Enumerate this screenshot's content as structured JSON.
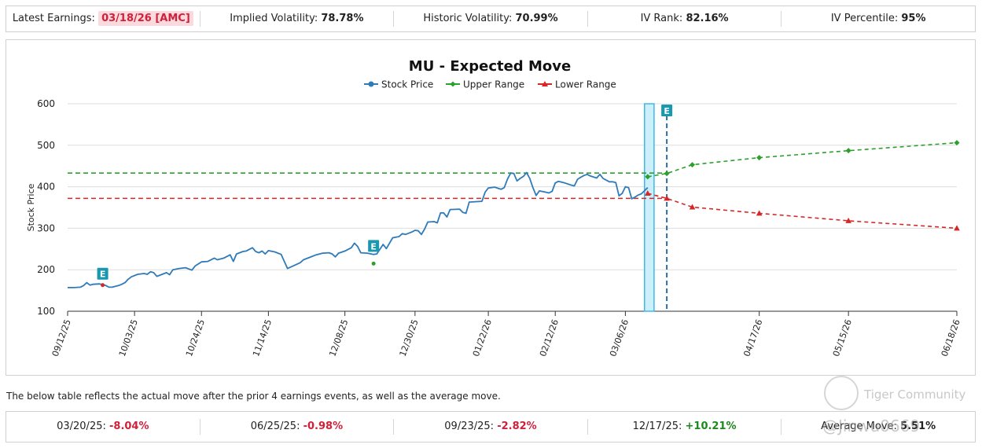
{
  "stats": {
    "latest_earnings_label": "Latest Earnings:",
    "latest_earnings_value": "03/18/26 [AMC]",
    "iv_label": "Implied Volatility:",
    "iv_value": "78.78%",
    "hv_label": "Historic Volatility:",
    "hv_value": "70.99%",
    "iv_rank_label": "IV Rank:",
    "iv_rank_value": "82.16%",
    "iv_pct_label": "IV Percentile:",
    "iv_pct_value": "95%"
  },
  "chart_data": {
    "type": "line",
    "title": "MU - Expected Move",
    "ylabel": "Stock Price",
    "xlabel": "",
    "ylim": [
      100,
      600
    ],
    "yticks": [
      100,
      200,
      300,
      400,
      500,
      600
    ],
    "grid": true,
    "legend": [
      "Stock Price",
      "Upper Range",
      "Lower Range"
    ],
    "legend_position": "top-center",
    "x_tick_labels": [
      "09/12/25",
      "10/03/25",
      "10/24/25",
      "11/14/25",
      "12/08/25",
      "12/30/25",
      "01/22/26",
      "02/12/26",
      "03/06/26",
      "04/17/26",
      "05/15/26",
      "06/18/26"
    ],
    "x_tick_days": [
      0,
      21,
      42,
      63,
      87,
      109,
      132,
      153,
      175,
      217,
      245,
      279
    ],
    "date_range_days": [
      0,
      279
    ],
    "series": [
      {
        "name": "Stock Price",
        "color": "#2f7ab9",
        "points": [
          [
            0,
            157
          ],
          [
            2,
            157
          ],
          [
            4,
            158
          ],
          [
            5,
            162
          ],
          [
            6,
            169
          ],
          [
            7,
            163
          ],
          [
            8,
            165
          ],
          [
            10,
            166
          ],
          [
            11,
            164
          ],
          [
            12,
            162
          ],
          [
            13,
            158
          ],
          [
            14,
            158
          ],
          [
            15,
            160
          ],
          [
            16,
            162
          ],
          [
            17,
            165
          ],
          [
            18,
            169
          ],
          [
            19,
            177
          ],
          [
            20,
            183
          ],
          [
            22,
            189
          ],
          [
            24,
            191
          ],
          [
            25,
            189
          ],
          [
            26,
            195
          ],
          [
            27,
            193
          ],
          [
            28,
            184
          ],
          [
            30,
            190
          ],
          [
            31,
            193
          ],
          [
            32,
            188
          ],
          [
            33,
            200
          ],
          [
            35,
            203
          ],
          [
            37,
            205
          ],
          [
            39,
            199
          ],
          [
            40,
            209
          ],
          [
            42,
            219
          ],
          [
            44,
            220
          ],
          [
            46,
            228
          ],
          [
            47,
            224
          ],
          [
            49,
            228
          ],
          [
            51,
            236
          ],
          [
            52,
            220
          ],
          [
            53,
            238
          ],
          [
            55,
            244
          ],
          [
            56,
            245
          ],
          [
            58,
            253
          ],
          [
            59,
            244
          ],
          [
            60,
            241
          ],
          [
            61,
            245
          ],
          [
            62,
            238
          ],
          [
            63,
            246
          ],
          [
            65,
            243
          ],
          [
            67,
            237
          ],
          [
            69,
            203
          ],
          [
            71,
            210
          ],
          [
            73,
            217
          ],
          [
            74,
            224
          ],
          [
            76,
            230
          ],
          [
            78,
            236
          ],
          [
            80,
            240
          ],
          [
            82,
            241
          ],
          [
            83,
            238
          ],
          [
            84,
            231
          ],
          [
            85,
            240
          ],
          [
            87,
            245
          ],
          [
            89,
            253
          ],
          [
            90,
            264
          ],
          [
            91,
            256
          ],
          [
            92,
            241
          ],
          [
            94,
            240
          ],
          [
            96,
            237
          ],
          [
            97,
            238
          ],
          [
            99,
            261
          ],
          [
            100,
            251
          ],
          [
            101,
            264
          ],
          [
            102,
            277
          ],
          [
            104,
            280
          ],
          [
            105,
            287
          ],
          [
            106,
            285
          ],
          [
            108,
            291
          ],
          [
            109,
            295
          ],
          [
            110,
            294
          ],
          [
            111,
            285
          ],
          [
            112,
            298
          ],
          [
            113,
            315
          ],
          [
            115,
            316
          ],
          [
            116,
            313
          ],
          [
            117,
            337
          ],
          [
            118,
            337
          ],
          [
            119,
            327
          ],
          [
            120,
            345
          ],
          [
            123,
            346
          ],
          [
            124,
            338
          ],
          [
            125,
            336
          ],
          [
            126,
            363
          ],
          [
            130,
            365
          ],
          [
            131,
            387
          ],
          [
            132,
            397
          ],
          [
            134,
            399
          ],
          [
            136,
            394
          ],
          [
            137,
            398
          ],
          [
            138,
            418
          ],
          [
            139,
            433
          ],
          [
            140,
            432
          ],
          [
            141,
            414
          ],
          [
            142,
            420
          ],
          [
            143,
            425
          ],
          [
            144,
            434
          ],
          [
            145,
            420
          ],
          [
            146,
            398
          ],
          [
            147,
            379
          ],
          [
            148,
            390
          ],
          [
            150,
            387
          ],
          [
            151,
            385
          ],
          [
            152,
            389
          ],
          [
            153,
            409
          ],
          [
            154,
            413
          ],
          [
            156,
            409
          ],
          [
            158,
            404
          ],
          [
            159,
            402
          ],
          [
            160,
            418
          ],
          [
            161,
            423
          ],
          [
            162,
            427
          ],
          [
            163,
            430
          ],
          [
            164,
            426
          ],
          [
            166,
            421
          ],
          [
            167,
            430
          ],
          [
            168,
            420
          ],
          [
            170,
            412
          ],
          [
            171,
            412
          ],
          [
            172,
            410
          ],
          [
            173,
            378
          ],
          [
            174,
            384
          ],
          [
            175,
            400
          ],
          [
            176,
            398
          ],
          [
            177,
            371
          ],
          [
            178,
            375
          ],
          [
            179,
            380
          ],
          [
            180,
            383
          ],
          [
            182,
            398
          ]
        ]
      },
      {
        "name": "Upper Range",
        "color": "#2ca02c",
        "points": [
          [
            182,
            424
          ],
          [
            188,
            432
          ],
          [
            196,
            453
          ],
          [
            217,
            470
          ],
          [
            245,
            487
          ],
          [
            279,
            506
          ]
        ]
      },
      {
        "name": "Lower Range",
        "color": "#d62728",
        "points": [
          [
            182,
            384
          ],
          [
            188,
            372
          ],
          [
            196,
            351
          ],
          [
            217,
            336
          ],
          [
            245,
            318
          ],
          [
            279,
            300
          ]
        ]
      }
    ],
    "reference_lines": [
      {
        "name": "upper-hline",
        "value": 433,
        "color": "#2ca02c",
        "from_day": 0,
        "to_day": 188
      },
      {
        "name": "lower-hline",
        "value": 372,
        "color": "#d62728",
        "from_day": 0,
        "to_day": 188
      }
    ],
    "earnings_markers": [
      {
        "label": "E",
        "day": 11,
        "value": 163
      },
      {
        "label": "E",
        "day": 96,
        "value": 230
      },
      {
        "label": "E",
        "day": 188,
        "value": 600
      }
    ],
    "earnings_date_line_day": 188,
    "highlight_band_days": [
      181,
      184
    ],
    "colors": {
      "stock": "#2f7ab9",
      "upper": "#2ca02c",
      "lower": "#d62728",
      "earnings_badge": "#1a98b0",
      "band_fill": "#cdeefb",
      "band_stroke": "#3fb8e6",
      "neg": "#d0203a",
      "pos": "#1a8a1a"
    }
  },
  "note": "The below table reflects the actual move after the prior 4 earnings events, as well as the average move.",
  "moves": [
    {
      "date": "03/20/25:",
      "value": "-8.04%"
    },
    {
      "date": "06/25/25:",
      "value": "-0.98%"
    },
    {
      "date": "09/23/25:",
      "value": "-2.82%"
    },
    {
      "date": "12/17/25:",
      "value": "+10.21%"
    }
  ],
  "average_move": {
    "label": "Average Move:",
    "value": "5.51%"
  },
  "watermark": {
    "brand": "Tiger Community",
    "handle": "@Jinwu0669"
  }
}
